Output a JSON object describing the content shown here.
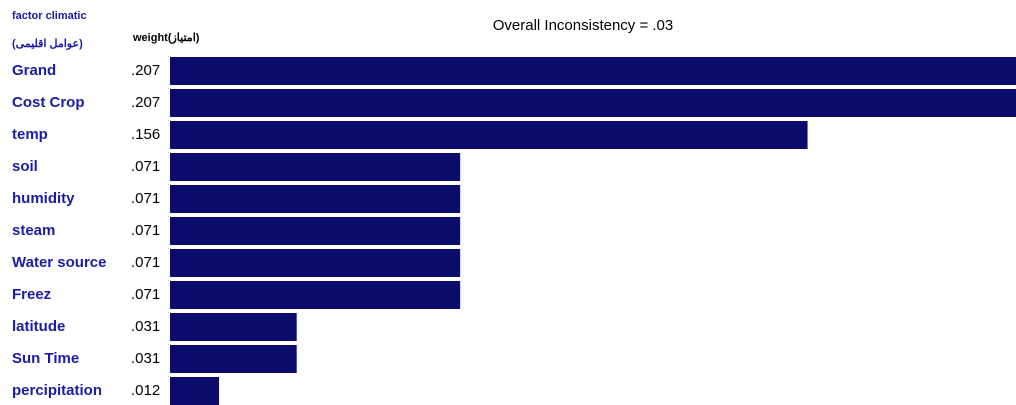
{
  "chart_data": {
    "type": "bar",
    "title": "Overall Inconsistency = .03",
    "category_header": "factor climatic",
    "category_header_sub": "(عوامل اقلیمی)",
    "value_header": "weight(امتیاز)",
    "categories": [
      "Grand",
      "Cost Crop",
      "temp",
      "soil",
      "humidity",
      "steam",
      "Water source",
      "Freez",
      "latitude",
      "Sun Time",
      "percipitation"
    ],
    "values": [
      0.207,
      0.207,
      0.156,
      0.071,
      0.071,
      0.071,
      0.071,
      0.071,
      0.031,
      0.031,
      0.012
    ],
    "value_labels": [
      ".207",
      ".207",
      ".156",
      ".071",
      ".071",
      ".071",
      ".071",
      ".071",
      ".031",
      ".031",
      ".012"
    ],
    "color": "#0b0b6b"
  }
}
